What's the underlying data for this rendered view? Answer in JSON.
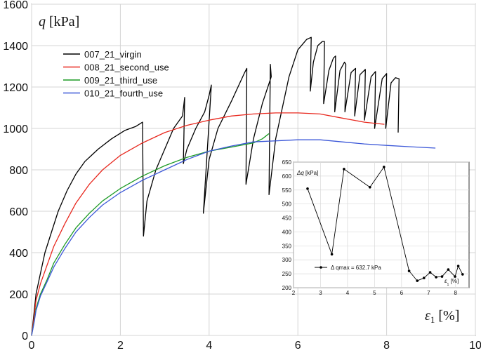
{
  "chart_data": [
    {
      "type": "line",
      "xlabel": "ε1 [%]",
      "ylabel": "q [kPa]",
      "xlim": [
        0,
        10
      ],
      "ylim": [
        0,
        1600
      ],
      "x_ticks": [
        "0",
        "2",
        "4",
        "6",
        "8",
        "10"
      ],
      "y_ticks": [
        "0",
        "200",
        "400",
        "600",
        "800",
        "1000",
        "1200",
        "1400",
        "1600"
      ],
      "grid": true,
      "legend_position": "top-left",
      "series": [
        {
          "name": "007_21_virgin",
          "color": "#000000",
          "points": [
            [
              0,
              0
            ],
            [
              0.05,
              100
            ],
            [
              0.1,
              200
            ],
            [
              0.2,
              300
            ],
            [
              0.3,
              400
            ],
            [
              0.45,
              500
            ],
            [
              0.6,
              600
            ],
            [
              0.8,
              700
            ],
            [
              1.0,
              780
            ],
            [
              1.2,
              840
            ],
            [
              1.5,
              900
            ],
            [
              1.8,
              950
            ],
            [
              2.1,
              990
            ],
            [
              2.35,
              1010
            ],
            [
              2.5,
              1030
            ],
            [
              2.52,
              480
            ],
            [
              2.6,
              650
            ],
            [
              2.8,
              800
            ],
            [
              3.0,
              900
            ],
            [
              3.2,
              1000
            ],
            [
              3.4,
              1060
            ],
            [
              3.45,
              1150
            ],
            [
              3.42,
              830
            ],
            [
              3.5,
              900
            ],
            [
              3.7,
              1000
            ],
            [
              3.9,
              1080
            ],
            [
              4.0,
              1160
            ],
            [
              4.05,
              1210
            ],
            [
              3.87,
              590
            ],
            [
              4.0,
              850
            ],
            [
              4.2,
              1000
            ],
            [
              4.5,
              1130
            ],
            [
              4.8,
              1270
            ],
            [
              4.85,
              1290
            ],
            [
              4.83,
              730
            ],
            [
              5.0,
              950
            ],
            [
              5.2,
              1120
            ],
            [
              5.4,
              1250
            ],
            [
              5.38,
              1310
            ],
            [
              5.35,
              680
            ],
            [
              5.5,
              950
            ],
            [
              5.8,
              1250
            ],
            [
              6.0,
              1380
            ],
            [
              6.2,
              1430
            ],
            [
              6.3,
              1440
            ],
            [
              6.28,
              1180
            ],
            [
              6.35,
              1320
            ],
            [
              6.45,
              1400
            ],
            [
              6.55,
              1420
            ],
            [
              6.6,
              1420
            ],
            [
              6.58,
              1120
            ],
            [
              6.7,
              1280
            ],
            [
              6.8,
              1340
            ],
            [
              6.85,
              1350
            ],
            [
              6.83,
              1080
            ],
            [
              6.95,
              1280
            ],
            [
              7.05,
              1320
            ],
            [
              7.08,
              1310
            ],
            [
              7.06,
              1080
            ],
            [
              7.2,
              1270
            ],
            [
              7.3,
              1290
            ],
            [
              7.28,
              1060
            ],
            [
              7.4,
              1260
            ],
            [
              7.52,
              1285
            ],
            [
              7.5,
              1040
            ],
            [
              7.65,
              1250
            ],
            [
              7.75,
              1275
            ],
            [
              7.73,
              1000
            ],
            [
              7.9,
              1240
            ],
            [
              8.0,
              1265
            ],
            [
              7.98,
              1000
            ],
            [
              8.1,
              1220
            ],
            [
              8.2,
              1245
            ],
            [
              8.28,
              1240
            ],
            [
              8.26,
              980
            ]
          ]
        },
        {
          "name": "008_21_second_use",
          "color": "#e8281e",
          "points": [
            [
              0,
              0
            ],
            [
              0.05,
              80
            ],
            [
              0.1,
              170
            ],
            [
              0.2,
              250
            ],
            [
              0.35,
              340
            ],
            [
              0.5,
              430
            ],
            [
              0.75,
              540
            ],
            [
              1.0,
              640
            ],
            [
              1.3,
              730
            ],
            [
              1.6,
              800
            ],
            [
              2.0,
              870
            ],
            [
              2.5,
              930
            ],
            [
              3.0,
              980
            ],
            [
              3.5,
              1015
            ],
            [
              4.0,
              1040
            ],
            [
              4.5,
              1060
            ],
            [
              5.0,
              1070
            ],
            [
              5.5,
              1075
            ],
            [
              6.0,
              1075
            ],
            [
              6.5,
              1070
            ],
            [
              7.0,
              1050
            ],
            [
              7.5,
              1030
            ],
            [
              7.95,
              1020
            ]
          ]
        },
        {
          "name": "009_21_third_use",
          "color": "#1c9a24",
          "points": [
            [
              0,
              0
            ],
            [
              0.05,
              60
            ],
            [
              0.1,
              130
            ],
            [
              0.2,
              200
            ],
            [
              0.35,
              270
            ],
            [
              0.5,
              350
            ],
            [
              0.75,
              440
            ],
            [
              1.0,
              520
            ],
            [
              1.3,
              590
            ],
            [
              1.6,
              650
            ],
            [
              2.0,
              710
            ],
            [
              2.5,
              770
            ],
            [
              3.0,
              820
            ],
            [
              3.5,
              860
            ],
            [
              4.0,
              890
            ],
            [
              4.5,
              910
            ],
            [
              5.0,
              930
            ],
            [
              5.2,
              950
            ],
            [
              5.35,
              975
            ]
          ]
        },
        {
          "name": "010_21_fourth_use",
          "color": "#3c58d8",
          "points": [
            [
              0,
              0
            ],
            [
              0.05,
              55
            ],
            [
              0.1,
              120
            ],
            [
              0.2,
              190
            ],
            [
              0.35,
              260
            ],
            [
              0.5,
              330
            ],
            [
              0.75,
              420
            ],
            [
              1.0,
              500
            ],
            [
              1.3,
              570
            ],
            [
              1.6,
              630
            ],
            [
              2.0,
              690
            ],
            [
              2.5,
              750
            ],
            [
              3.0,
              800
            ],
            [
              3.5,
              850
            ],
            [
              4.0,
              890
            ],
            [
              4.5,
              915
            ],
            [
              5.0,
              935
            ],
            [
              5.5,
              940
            ],
            [
              6.0,
              945
            ],
            [
              6.5,
              945
            ],
            [
              7.0,
              935
            ],
            [
              7.5,
              925
            ],
            [
              8.0,
              918
            ],
            [
              8.5,
              912
            ],
            [
              9.1,
              905
            ]
          ]
        }
      ]
    },
    {
      "type": "line",
      "inset": true,
      "ylabel": "Δq [kPa]",
      "xlabel": "ε1 [%]",
      "xlim": [
        2,
        8.5
      ],
      "ylim": [
        200,
        650
      ],
      "x_ticks": [
        "2",
        "3",
        "4",
        "5",
        "6",
        "7",
        "8"
      ],
      "y_ticks": [
        "200",
        "250",
        "300",
        "350",
        "400",
        "450",
        "500",
        "550",
        "600",
        "650"
      ],
      "grid": true,
      "legend_position": "bottom-center",
      "series": [
        {
          "name": "Δ qmax = 632.7 kPa",
          "color": "#000000",
          "points": [
            [
              2.52,
              555
            ],
            [
              3.42,
              320
            ],
            [
              3.87,
              625
            ],
            [
              4.83,
              560
            ],
            [
              5.35,
              632.7
            ],
            [
              6.28,
              260
            ],
            [
              6.58,
              225
            ],
            [
              6.83,
              235
            ],
            [
              7.06,
              255
            ],
            [
              7.28,
              238
            ],
            [
              7.5,
              240
            ],
            [
              7.73,
              265
            ],
            [
              7.98,
              240
            ],
            [
              8.1,
              278
            ],
            [
              8.26,
              248
            ]
          ]
        }
      ]
    }
  ]
}
